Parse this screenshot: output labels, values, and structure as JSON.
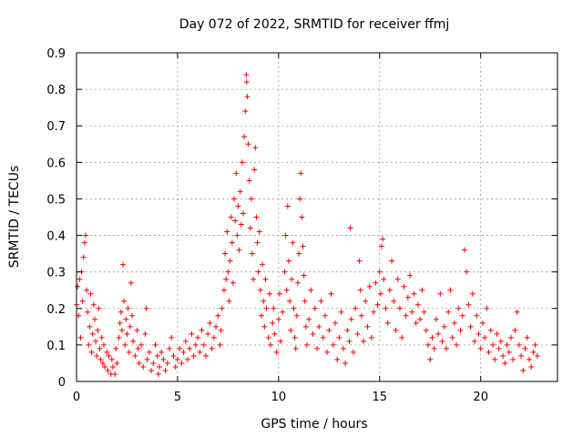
{
  "chart_data": {
    "type": "scatter",
    "title": "Day 072 of 2022, SRMTID for receiver ffmj",
    "xlabel": "GPS time / hours",
    "ylabel": "SRMTID / TECUs",
    "xlim": [
      0,
      23.8
    ],
    "ylim": [
      0,
      0.9
    ],
    "xticks": [
      0,
      5,
      10,
      15,
      20
    ],
    "yticks": [
      0,
      0.1,
      0.2,
      0.3,
      0.4,
      0.5,
      0.6,
      0.7,
      0.8,
      0.9
    ],
    "xtick_labels": [
      "0",
      "5",
      "10",
      "15",
      "20"
    ],
    "ytick_labels": [
      "0",
      "0.1",
      "0.2",
      "0.3",
      "0.4",
      "0.5",
      "0.6",
      "0.7",
      "0.8",
      "0.9"
    ],
    "grid": true,
    "marker": "+",
    "color": "#ff0000",
    "series": [
      {
        "name": "SRMTID",
        "points": [
          [
            0.0,
            0.21
          ],
          [
            0.05,
            0.26
          ],
          [
            0.1,
            0.18
          ],
          [
            0.15,
            0.28
          ],
          [
            0.2,
            0.12
          ],
          [
            0.25,
            0.3
          ],
          [
            0.3,
            0.22
          ],
          [
            0.35,
            0.34
          ],
          [
            0.4,
            0.38
          ],
          [
            0.45,
            0.4
          ],
          [
            0.5,
            0.25
          ],
          [
            0.55,
            0.19
          ],
          [
            0.6,
            0.1
          ],
          [
            0.65,
            0.15
          ],
          [
            0.7,
            0.24
          ],
          [
            0.75,
            0.08
          ],
          [
            0.8,
            0.13
          ],
          [
            0.85,
            0.21
          ],
          [
            0.9,
            0.17
          ],
          [
            0.95,
            0.11
          ],
          [
            1.0,
            0.07
          ],
          [
            1.05,
            0.14
          ],
          [
            1.1,
            0.2
          ],
          [
            1.15,
            0.09
          ],
          [
            1.2,
            0.06
          ],
          [
            1.25,
            0.12
          ],
          [
            1.3,
            0.05
          ],
          [
            1.35,
            0.1
          ],
          [
            1.4,
            0.04
          ],
          [
            1.5,
            0.08
          ],
          [
            1.55,
            0.03
          ],
          [
            1.6,
            0.07
          ],
          [
            1.7,
            0.02
          ],
          [
            1.75,
            0.06
          ],
          [
            1.8,
            0.04
          ],
          [
            1.9,
            0.02
          ],
          [
            1.95,
            0.09
          ],
          [
            2.0,
            0.05
          ],
          [
            2.1,
            0.12
          ],
          [
            2.15,
            0.16
          ],
          [
            2.2,
            0.19
          ],
          [
            2.25,
            0.14
          ],
          [
            2.3,
            0.32
          ],
          [
            2.35,
            0.22
          ],
          [
            2.4,
            0.1
          ],
          [
            2.45,
            0.17
          ],
          [
            2.5,
            0.13
          ],
          [
            2.55,
            0.2
          ],
          [
            2.6,
            0.08
          ],
          [
            2.65,
            0.15
          ],
          [
            2.7,
            0.27
          ],
          [
            2.75,
            0.18
          ],
          [
            2.8,
            0.11
          ],
          [
            2.9,
            0.07
          ],
          [
            3.0,
            0.14
          ],
          [
            3.05,
            0.09
          ],
          [
            3.1,
            0.05
          ],
          [
            3.2,
            0.1
          ],
          [
            3.3,
            0.04
          ],
          [
            3.4,
            0.13
          ],
          [
            3.45,
            0.2
          ],
          [
            3.5,
            0.06
          ],
          [
            3.6,
            0.08
          ],
          [
            3.7,
            0.03
          ],
          [
            3.8,
            0.05
          ],
          [
            3.9,
            0.1
          ],
          [
            4.0,
            0.07
          ],
          [
            4.05,
            0.02
          ],
          [
            4.1,
            0.04
          ],
          [
            4.2,
            0.08
          ],
          [
            4.3,
            0.06
          ],
          [
            4.4,
            0.03
          ],
          [
            4.5,
            0.05
          ],
          [
            4.6,
            0.09
          ],
          [
            4.7,
            0.12
          ],
          [
            4.8,
            0.07
          ],
          [
            4.9,
            0.04
          ],
          [
            5.0,
            0.06
          ],
          [
            5.1,
            0.09
          ],
          [
            5.2,
            0.05
          ],
          [
            5.3,
            0.08
          ],
          [
            5.4,
            0.11
          ],
          [
            5.5,
            0.06
          ],
          [
            5.6,
            0.09
          ],
          [
            5.7,
            0.13
          ],
          [
            5.8,
            0.07
          ],
          [
            5.9,
            0.1
          ],
          [
            6.0,
            0.12
          ],
          [
            6.1,
            0.08
          ],
          [
            6.2,
            0.14
          ],
          [
            6.3,
            0.1
          ],
          [
            6.4,
            0.07
          ],
          [
            6.5,
            0.13
          ],
          [
            6.6,
            0.16
          ],
          [
            6.7,
            0.09
          ],
          [
            6.8,
            0.12
          ],
          [
            6.9,
            0.15
          ],
          [
            7.0,
            0.18
          ],
          [
            7.1,
            0.1
          ],
          [
            7.15,
            0.14
          ],
          [
            7.2,
            0.2
          ],
          [
            7.3,
            0.25
          ],
          [
            7.35,
            0.35
          ],
          [
            7.4,
            0.28
          ],
          [
            7.45,
            0.41
          ],
          [
            7.5,
            0.3
          ],
          [
            7.55,
            0.22
          ],
          [
            7.6,
            0.33
          ],
          [
            7.65,
            0.45
          ],
          [
            7.7,
            0.38
          ],
          [
            7.75,
            0.27
          ],
          [
            7.8,
            0.5
          ],
          [
            7.85,
            0.44
          ],
          [
            7.9,
            0.57
          ],
          [
            7.95,
            0.4
          ],
          [
            8.0,
            0.48
          ],
          [
            8.05,
            0.36
          ],
          [
            8.1,
            0.52
          ],
          [
            8.15,
            0.43
          ],
          [
            8.2,
            0.6
          ],
          [
            8.25,
            0.46
          ],
          [
            8.3,
            0.67
          ],
          [
            8.35,
            0.74
          ],
          [
            8.4,
            0.84
          ],
          [
            8.42,
            0.82
          ],
          [
            8.45,
            0.78
          ],
          [
            8.5,
            0.65
          ],
          [
            8.55,
            0.55
          ],
          [
            8.6,
            0.42
          ],
          [
            8.65,
            0.5
          ],
          [
            8.7,
            0.35
          ],
          [
            8.75,
            0.28
          ],
          [
            8.8,
            0.58
          ],
          [
            8.85,
            0.64
          ],
          [
            8.9,
            0.45
          ],
          [
            8.95,
            0.38
          ],
          [
            9.0,
            0.3
          ],
          [
            9.05,
            0.41
          ],
          [
            9.1,
            0.25
          ],
          [
            9.15,
            0.18
          ],
          [
            9.2,
            0.32
          ],
          [
            9.25,
            0.22
          ],
          [
            9.3,
            0.15
          ],
          [
            9.35,
            0.28
          ],
          [
            9.4,
            0.2
          ],
          [
            9.5,
            0.12
          ],
          [
            9.55,
            0.24
          ],
          [
            9.6,
            0.1
          ],
          [
            9.7,
            0.16
          ],
          [
            9.75,
            0.2
          ],
          [
            9.8,
            0.13
          ],
          [
            9.9,
            0.08
          ],
          [
            10.0,
            0.17
          ],
          [
            10.05,
            0.24
          ],
          [
            10.1,
            0.11
          ],
          [
            10.2,
            0.19
          ],
          [
            10.3,
            0.3
          ],
          [
            10.35,
            0.4
          ],
          [
            10.4,
            0.25
          ],
          [
            10.45,
            0.48
          ],
          [
            10.5,
            0.33
          ],
          [
            10.55,
            0.22
          ],
          [
            10.6,
            0.14
          ],
          [
            10.65,
            0.28
          ],
          [
            10.7,
            0.38
          ],
          [
            10.75,
            0.2
          ],
          [
            10.8,
            0.12
          ],
          [
            10.85,
            0.09
          ],
          [
            10.9,
            0.18
          ],
          [
            10.95,
            0.27
          ],
          [
            11.0,
            0.35
          ],
          [
            11.05,
            0.5
          ],
          [
            11.1,
            0.57
          ],
          [
            11.15,
            0.45
          ],
          [
            11.2,
            0.37
          ],
          [
            11.25,
            0.29
          ],
          [
            11.3,
            0.22
          ],
          [
            11.35,
            0.15
          ],
          [
            11.4,
            0.1
          ],
          [
            11.5,
            0.17
          ],
          [
            11.6,
            0.25
          ],
          [
            11.7,
            0.13
          ],
          [
            11.8,
            0.2
          ],
          [
            11.9,
            0.09
          ],
          [
            12.0,
            0.15
          ],
          [
            12.1,
            0.22
          ],
          [
            12.2,
            0.12
          ],
          [
            12.3,
            0.18
          ],
          [
            12.4,
            0.08
          ],
          [
            12.5,
            0.14
          ],
          [
            12.6,
            0.24
          ],
          [
            12.7,
            0.1
          ],
          [
            12.8,
            0.16
          ],
          [
            12.9,
            0.06
          ],
          [
            13.0,
            0.12
          ],
          [
            13.1,
            0.19
          ],
          [
            13.2,
            0.09
          ],
          [
            13.3,
            0.05
          ],
          [
            13.4,
            0.14
          ],
          [
            13.5,
            0.11
          ],
          [
            13.55,
            0.42
          ],
          [
            13.6,
            0.17
          ],
          [
            13.7,
            0.08
          ],
          [
            13.8,
            0.2
          ],
          [
            13.9,
            0.13
          ],
          [
            14.0,
            0.33
          ],
          [
            14.05,
            0.25
          ],
          [
            14.1,
            0.18
          ],
          [
            14.2,
            0.11
          ],
          [
            14.3,
            0.22
          ],
          [
            14.4,
            0.15
          ],
          [
            14.5,
            0.26
          ],
          [
            14.6,
            0.12
          ],
          [
            14.7,
            0.19
          ],
          [
            14.8,
            0.27
          ],
          [
            14.9,
            0.21
          ],
          [
            15.0,
            0.3
          ],
          [
            15.05,
            0.24
          ],
          [
            15.1,
            0.37
          ],
          [
            15.15,
            0.39
          ],
          [
            15.2,
            0.28
          ],
          [
            15.3,
            0.2
          ],
          [
            15.4,
            0.16
          ],
          [
            15.5,
            0.25
          ],
          [
            15.6,
            0.33
          ],
          [
            15.7,
            0.22
          ],
          [
            15.8,
            0.14
          ],
          [
            15.9,
            0.28
          ],
          [
            16.0,
            0.2
          ],
          [
            16.1,
            0.12
          ],
          [
            16.2,
            0.26
          ],
          [
            16.3,
            0.18
          ],
          [
            16.4,
            0.23
          ],
          [
            16.5,
            0.29
          ],
          [
            16.6,
            0.19
          ],
          [
            16.7,
            0.24
          ],
          [
            16.8,
            0.16
          ],
          [
            16.9,
            0.21
          ],
          [
            17.0,
            0.17
          ],
          [
            17.1,
            0.25
          ],
          [
            17.2,
            0.19
          ],
          [
            17.3,
            0.14
          ],
          [
            17.4,
            0.1
          ],
          [
            17.5,
            0.06
          ],
          [
            17.6,
            0.12
          ],
          [
            17.7,
            0.09
          ],
          [
            17.8,
            0.17
          ],
          [
            17.9,
            0.13
          ],
          [
            18.0,
            0.24
          ],
          [
            18.1,
            0.11
          ],
          [
            18.2,
            0.15
          ],
          [
            18.3,
            0.09
          ],
          [
            18.4,
            0.19
          ],
          [
            18.5,
            0.25
          ],
          [
            18.6,
            0.12
          ],
          [
            18.7,
            0.16
          ],
          [
            18.8,
            0.1
          ],
          [
            18.9,
            0.2
          ],
          [
            19.0,
            0.14
          ],
          [
            19.1,
            0.18
          ],
          [
            19.2,
            0.36
          ],
          [
            19.3,
            0.3
          ],
          [
            19.4,
            0.21
          ],
          [
            19.5,
            0.15
          ],
          [
            19.6,
            0.24
          ],
          [
            19.7,
            0.11
          ],
          [
            19.8,
            0.18
          ],
          [
            19.9,
            0.13
          ],
          [
            20.0,
            0.09
          ],
          [
            20.1,
            0.16
          ],
          [
            20.2,
            0.12
          ],
          [
            20.3,
            0.2
          ],
          [
            20.4,
            0.08
          ],
          [
            20.5,
            0.14
          ],
          [
            20.6,
            0.1
          ],
          [
            20.7,
            0.06
          ],
          [
            20.8,
            0.13
          ],
          [
            20.9,
            0.09
          ],
          [
            21.0,
            0.11
          ],
          [
            21.1,
            0.07
          ],
          [
            21.2,
            0.05
          ],
          [
            21.3,
            0.1
          ],
          [
            21.4,
            0.08
          ],
          [
            21.5,
            0.12
          ],
          [
            21.6,
            0.06
          ],
          [
            21.7,
            0.14
          ],
          [
            21.8,
            0.19
          ],
          [
            21.9,
            0.1
          ],
          [
            22.0,
            0.07
          ],
          [
            22.1,
            0.03
          ],
          [
            22.2,
            0.09
          ],
          [
            22.3,
            0.12
          ],
          [
            22.4,
            0.06
          ],
          [
            22.5,
            0.04
          ],
          [
            22.6,
            0.08
          ],
          [
            22.7,
            0.1
          ],
          [
            22.8,
            0.07
          ]
        ]
      }
    ]
  }
}
